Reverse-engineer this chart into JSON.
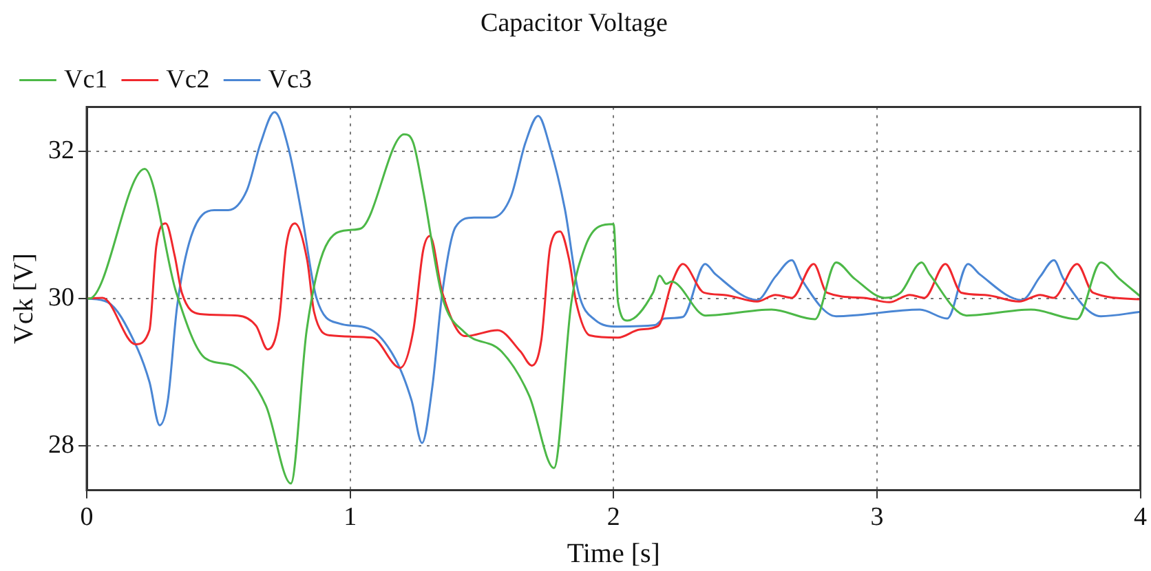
{
  "chart_data": {
    "type": "line",
    "title": "Capacitor Voltage",
    "xlabel": "Time [s]",
    "ylabel": "Vck [V]",
    "xlim": [
      0,
      4
    ],
    "xticks": [
      0,
      1,
      2,
      3,
      4
    ],
    "ylim": [
      27.4,
      32.6
    ],
    "yticks": [
      28,
      30,
      32
    ],
    "grid": true,
    "legend": "top left",
    "marker": "none",
    "line_style": "solid",
    "series": [
      {
        "name": "Vc1",
        "color": "#4cb847",
        "x": [
          0,
          0.01,
          0.22,
          0.34,
          0.45,
          0.555,
          0.68,
          0.775,
          0.835,
          0.907,
          0.995,
          1.04,
          1.205,
          1.24,
          1.277,
          1.35,
          1.435,
          1.575,
          1.68,
          1.774,
          1.84,
          1.893,
          1.946,
          2.0,
          2.017,
          2.052,
          2.15,
          2.175,
          2.2,
          2.22,
          2.35,
          2.6,
          2.765,
          2.845,
          2.915,
          3.03,
          3.09,
          3.17,
          3.2,
          3.34,
          3.585,
          3.76,
          3.85,
          3.92,
          4.0
        ],
        "values": [
          30,
          30,
          31.76,
          30.08,
          29.19,
          29.09,
          28.55,
          27.49,
          29.57,
          30.71,
          30.93,
          30.95,
          32.23,
          32.11,
          31.47,
          30.02,
          29.54,
          29.28,
          28.68,
          27.7,
          29.95,
          30.71,
          30.98,
          31.01,
          29.95,
          29.7,
          30.08,
          30.31,
          30.2,
          30.23,
          29.77,
          29.85,
          29.72,
          30.49,
          30.27,
          30.01,
          30.08,
          30.49,
          30.33,
          29.77,
          29.85,
          29.72,
          30.49,
          30.27,
          30.03
        ]
      },
      {
        "name": "Vc2",
        "color": "#f0282d",
        "x": [
          0,
          0.06,
          0.185,
          0.238,
          0.264,
          0.3,
          0.334,
          0.361,
          0.43,
          0.573,
          0.643,
          0.687,
          0.73,
          0.757,
          0.79,
          0.837,
          0.863,
          0.925,
          1.083,
          1.19,
          1.24,
          1.277,
          1.303,
          1.35,
          1.436,
          1.56,
          1.647,
          1.69,
          1.726,
          1.76,
          1.797,
          1.832,
          1.858,
          1.91,
          2.017,
          2.1,
          2.17,
          2.22,
          2.263,
          2.343,
          2.42,
          2.545,
          2.615,
          2.677,
          2.76,
          2.81,
          2.95,
          3.047,
          3.125,
          3.18,
          3.26,
          3.32,
          3.41,
          3.54,
          3.62,
          3.67,
          3.76,
          3.82,
          4.0
        ],
        "values": [
          30,
          30.01,
          29.38,
          29.57,
          30.71,
          31.02,
          30.58,
          30.08,
          29.79,
          29.77,
          29.63,
          29.31,
          29.7,
          30.71,
          31.02,
          30.52,
          29.82,
          29.5,
          29.47,
          29.06,
          29.57,
          30.65,
          30.85,
          30.08,
          29.49,
          29.57,
          29.28,
          29.09,
          29.44,
          30.71,
          30.91,
          30.52,
          29.95,
          29.5,
          29.47,
          29.58,
          29.63,
          30.2,
          30.47,
          30.08,
          30.05,
          29.96,
          30.05,
          30.01,
          30.47,
          30.08,
          30.01,
          29.95,
          30.05,
          30.01,
          30.47,
          30.08,
          30.05,
          29.96,
          30.05,
          30.01,
          30.47,
          30.08,
          29.99
        ]
      },
      {
        "name": "Vc3",
        "color": "#4a86d4",
        "x": [
          0,
          0.08,
          0.185,
          0.238,
          0.277,
          0.308,
          0.343,
          0.396,
          0.484,
          0.537,
          0.608,
          0.66,
          0.713,
          0.766,
          0.819,
          0.872,
          0.96,
          1.066,
          1.17,
          1.233,
          1.273,
          1.312,
          1.35,
          1.4,
          1.47,
          1.54,
          1.61,
          1.665,
          1.714,
          1.76,
          1.815,
          1.867,
          1.93,
          2.017,
          2.157,
          2.193,
          2.263,
          2.348,
          2.387,
          2.545,
          2.615,
          2.677,
          2.712,
          2.845,
          3.163,
          3.267,
          3.346,
          3.39,
          3.55,
          3.62,
          3.672,
          3.708,
          3.85,
          4.0
        ],
        "values": [
          30,
          29.95,
          29.38,
          28.87,
          28.28,
          28.62,
          29.89,
          30.84,
          31.2,
          31.2,
          31.47,
          32.11,
          32.53,
          32.04,
          31.09,
          30.01,
          29.66,
          29.6,
          29.19,
          28.62,
          28.04,
          28.8,
          30.08,
          30.97,
          31.1,
          31.1,
          31.38,
          32.11,
          32.48,
          32.04,
          31.22,
          30.08,
          29.71,
          29.62,
          29.64,
          29.73,
          29.75,
          30.47,
          30.33,
          29.98,
          30.3,
          30.52,
          30.27,
          29.76,
          29.85,
          29.73,
          30.47,
          30.33,
          29.98,
          30.3,
          30.52,
          30.27,
          29.76,
          29.82
        ]
      }
    ]
  }
}
